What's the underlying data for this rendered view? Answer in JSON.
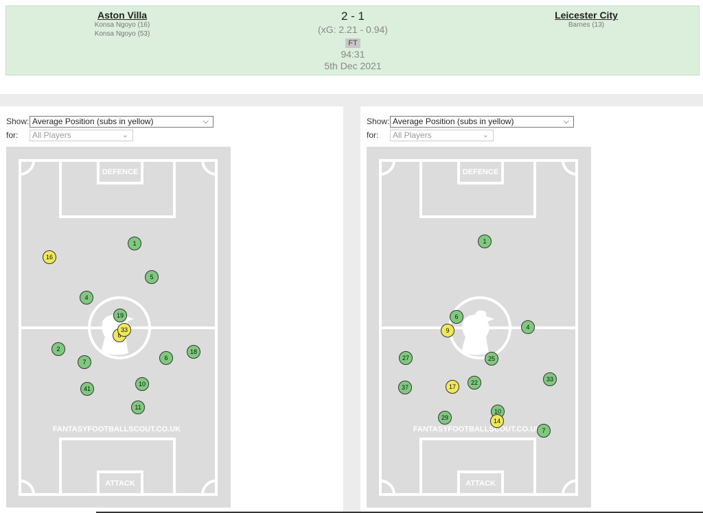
{
  "match": {
    "home": {
      "name": "Aston Villa",
      "scorers": [
        "Konsa Ngoyo (16)",
        "Konsa Ngoyo (53)"
      ]
    },
    "away": {
      "name": "Leicester City",
      "scorers": [
        "Barnes (13)"
      ]
    },
    "score": "2 - 1",
    "xg": "(xG:  2.21 - 0.94)",
    "status": "FT",
    "clock": "94:31",
    "date": "5th Dec 2021"
  },
  "controls": {
    "show_label": "Show:",
    "show_value": "Average Position (subs in yellow)",
    "for_label": "for:",
    "for_value": "All Players"
  },
  "pitch": {
    "defence_label": "DEFENCE",
    "attack_label": "ATTACK",
    "watermark": "FANTASYFOOTBALLSCOUT.CO.UK"
  },
  "home_players": [
    {
      "num": "1",
      "sub": false
    },
    {
      "num": "16",
      "sub": true
    },
    {
      "num": "5",
      "sub": false
    },
    {
      "num": "4",
      "sub": false
    },
    {
      "num": "19",
      "sub": false
    },
    {
      "num": "8",
      "sub": true
    },
    {
      "num": "33",
      "sub": true
    },
    {
      "num": "2",
      "sub": false
    },
    {
      "num": "18",
      "sub": false
    },
    {
      "num": "7",
      "sub": false
    },
    {
      "num": "6",
      "sub": false
    },
    {
      "num": "10",
      "sub": false
    },
    {
      "num": "41",
      "sub": false
    },
    {
      "num": "11",
      "sub": false
    }
  ],
  "away_players": [
    {
      "num": "1",
      "sub": false
    },
    {
      "num": "6",
      "sub": false
    },
    {
      "num": "9",
      "sub": true
    },
    {
      "num": "4",
      "sub": false
    },
    {
      "num": "27",
      "sub": false
    },
    {
      "num": "25",
      "sub": false
    },
    {
      "num": "33",
      "sub": false
    },
    {
      "num": "37",
      "sub": false
    },
    {
      "num": "17",
      "sub": true
    },
    {
      "num": "22",
      "sub": false
    },
    {
      "num": "10",
      "sub": false
    },
    {
      "num": "29",
      "sub": false
    },
    {
      "num": "14",
      "sub": true
    },
    {
      "num": "7",
      "sub": false
    }
  ]
}
